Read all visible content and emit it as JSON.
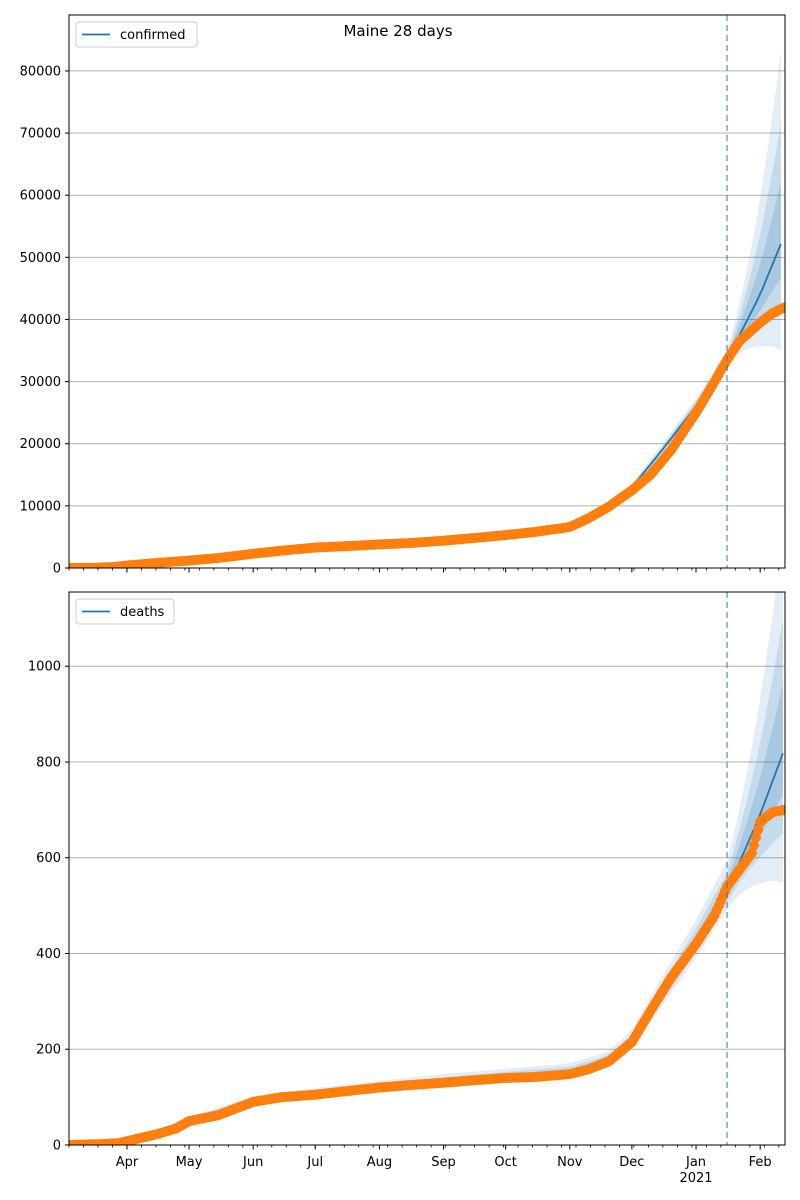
{
  "figure": {
    "title": "Maine 28 days"
  },
  "colors": {
    "model_line": "#1f77b4",
    "observed_points": "#ff7f0e",
    "band": "#1f77b4",
    "forecast_start_line": "#1f77b4",
    "grid": "#b0b0b0"
  },
  "chart_data": [
    {
      "type": "line",
      "name": "confirmed-panel",
      "legend": {
        "label": "confirmed",
        "placement": "top-left"
      },
      "ylim": [
        0,
        89000
      ],
      "yticks": [
        0,
        10000,
        20000,
        30000,
        40000,
        50000,
        60000,
        70000,
        80000
      ],
      "grid": "horizontal",
      "forecast_start": "2021-01-16",
      "xrange": [
        "2020-03-04",
        "2021-02-13"
      ],
      "observed": {
        "x": [
          "2020-03-04",
          "2020-03-15",
          "2020-03-25",
          "2020-04-01",
          "2020-04-15",
          "2020-05-01",
          "2020-05-15",
          "2020-06-01",
          "2020-06-15",
          "2020-07-01",
          "2020-07-15",
          "2020-08-01",
          "2020-08-15",
          "2020-09-01",
          "2020-09-15",
          "2020-10-01",
          "2020-10-15",
          "2020-11-01",
          "2020-11-10",
          "2020-11-20",
          "2020-12-01",
          "2020-12-10",
          "2020-12-20",
          "2021-01-01",
          "2021-01-10",
          "2021-01-16",
          "2021-01-22",
          "2021-02-01",
          "2021-02-07",
          "2021-02-13"
        ],
        "y": [
          0,
          30,
          150,
          400,
          800,
          1200,
          1600,
          2300,
          2800,
          3300,
          3500,
          3800,
          4000,
          4400,
          4800,
          5300,
          5800,
          6600,
          8000,
          9900,
          12500,
          15000,
          19000,
          25000,
          30000,
          33500,
          36500,
          39500,
          41000,
          42000
        ]
      },
      "model": {
        "x": [
          "2020-11-01",
          "2020-11-15",
          "2020-12-01",
          "2020-12-15",
          "2021-01-01",
          "2021-01-16",
          "2021-02-01",
          "2021-02-13"
        ],
        "median": [
          6600,
          8600,
          13000,
          18700,
          26000,
          33500,
          44000,
          53800
        ]
      },
      "xaxis": {
        "tick_labels_shown": false
      }
    },
    {
      "type": "line",
      "name": "deaths-panel",
      "legend": {
        "label": "deaths",
        "placement": "top-left"
      },
      "ylim": [
        0,
        1155
      ],
      "yticks": [
        0,
        200,
        400,
        600,
        800,
        1000
      ],
      "grid": "horizontal",
      "forecast_start": "2021-01-16",
      "xrange": [
        "2020-03-04",
        "2021-02-13"
      ],
      "xticks": [
        {
          "date": "2020-04-01",
          "label": "Apr"
        },
        {
          "date": "2020-05-01",
          "label": "May"
        },
        {
          "date": "2020-06-01",
          "label": "Jun"
        },
        {
          "date": "2020-07-01",
          "label": "Jul"
        },
        {
          "date": "2020-08-01",
          "label": "Aug"
        },
        {
          "date": "2020-09-01",
          "label": "Sep"
        },
        {
          "date": "2020-10-01",
          "label": "Oct"
        },
        {
          "date": "2020-11-01",
          "label": "Nov"
        },
        {
          "date": "2020-12-01",
          "label": "Dec"
        },
        {
          "date": "2021-01-01",
          "label": "Jan",
          "sublabel": "2021"
        },
        {
          "date": "2021-02-01",
          "label": "Feb"
        }
      ],
      "observed": {
        "x": [
          "2020-03-04",
          "2020-03-20",
          "2020-03-28",
          "2020-04-05",
          "2020-04-15",
          "2020-04-25",
          "2020-05-01",
          "2020-05-15",
          "2020-06-01",
          "2020-06-15",
          "2020-07-01",
          "2020-07-15",
          "2020-08-01",
          "2020-08-15",
          "2020-09-01",
          "2020-09-15",
          "2020-10-01",
          "2020-10-15",
          "2020-11-01",
          "2020-11-10",
          "2020-11-20",
          "2020-12-01",
          "2020-12-10",
          "2020-12-20",
          "2021-01-01",
          "2021-01-10",
          "2021-01-16",
          "2021-01-22",
          "2021-01-28",
          "2021-02-01",
          "2021-02-07",
          "2021-02-13"
        ],
        "y": [
          0,
          2,
          4,
          12,
          22,
          35,
          50,
          62,
          90,
          100,
          105,
          112,
          120,
          125,
          130,
          135,
          140,
          142,
          148,
          158,
          175,
          215,
          280,
          350,
          420,
          480,
          540,
          575,
          610,
          675,
          695,
          700
        ]
      },
      "model": {
        "x": [
          "2020-03-04",
          "2020-03-28",
          "2020-04-15",
          "2020-05-01",
          "2020-06-01",
          "2020-07-01",
          "2020-08-01",
          "2020-09-01",
          "2020-10-01",
          "2020-11-01",
          "2020-11-20",
          "2020-12-01",
          "2020-12-15",
          "2021-01-01",
          "2021-01-16",
          "2021-02-01",
          "2021-02-13"
        ],
        "median": [
          0,
          5,
          25,
          52,
          92,
          106,
          120,
          132,
          142,
          152,
          175,
          215,
          310,
          420,
          530,
          690,
          830
        ]
      },
      "xaxis": {
        "tick_labels_shown": true
      }
    }
  ]
}
